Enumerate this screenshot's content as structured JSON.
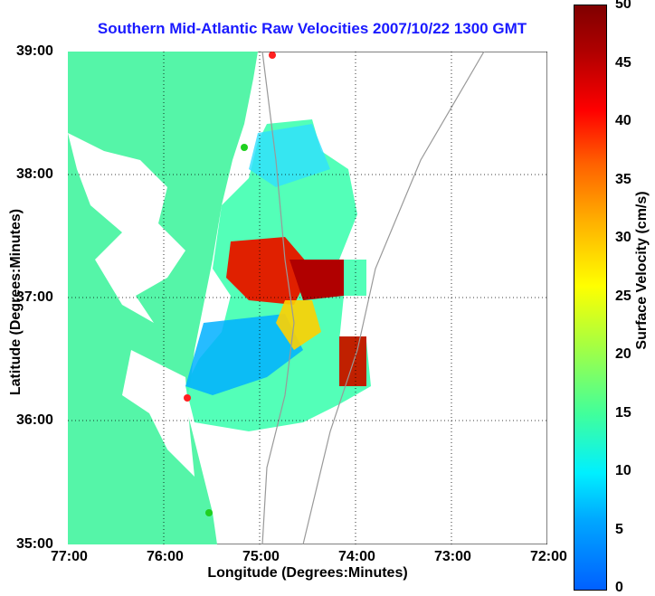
{
  "title": "Southern Mid-Atlantic Raw Velocities 2007/10/22 1300 GMT",
  "xaxis": {
    "label": "Longitude (Degrees:Minutes)",
    "ticks": [
      "77:00",
      "76:00",
      "75:00",
      "74:00",
      "73:00",
      "72:00"
    ]
  },
  "yaxis": {
    "label": "Latitude (Degrees:Minutes)",
    "ticks": [
      "39:00",
      "38:00",
      "37:00",
      "36:00",
      "35:00"
    ]
  },
  "colorbar": {
    "label": "Surface Velocity (cm/s)",
    "ticks": [
      "50",
      "45",
      "40",
      "35",
      "30",
      "25",
      "20",
      "15",
      "10",
      "5",
      "0"
    ],
    "range": [
      0,
      50
    ]
  },
  "colors": {
    "land": "#55f5a8",
    "title": "#1a1aff",
    "site_red": "#ff2020",
    "site_green": "#20d020"
  }
}
